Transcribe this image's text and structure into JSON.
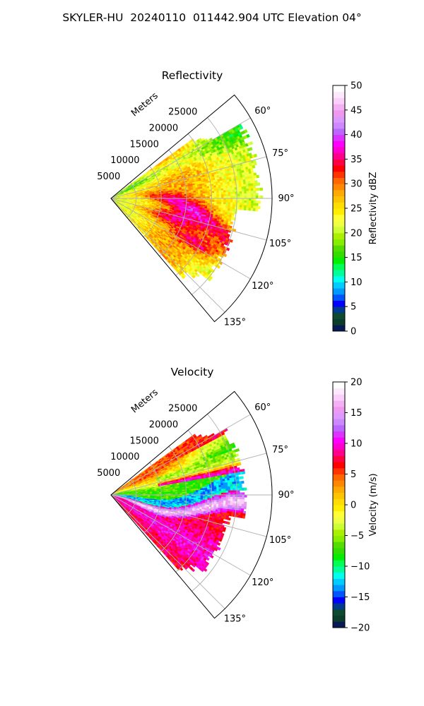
{
  "title": "SKYLER-HU  20240110  011442.904 UTC Elevation 04°",
  "chart_data": [
    {
      "type": "heatmap",
      "subtype": "polar-sector-ppi",
      "title": "Reflectivity",
      "range_label": "Meters",
      "range_ticks": [
        5000,
        10000,
        15000,
        20000,
        25000
      ],
      "range_tick_labels": [
        "5000",
        "10000",
        "15000",
        "20000",
        "25000"
      ],
      "rmax": 32000,
      "theta_min": 50,
      "theta_max": 140,
      "theta_ticks": [
        60,
        75,
        90,
        105,
        120,
        135
      ],
      "theta_tick_labels": [
        "60°",
        "75°",
        "90°",
        "105°",
        "120°",
        "135°"
      ],
      "grid": true,
      "colorbar": {
        "label": "Reflectivity dBZ",
        "min": 0,
        "max": 50,
        "ticks": [
          0,
          5,
          10,
          15,
          20,
          25,
          30,
          35,
          40,
          45,
          50
        ],
        "tick_labels": [
          "0",
          "5",
          "10",
          "15",
          "20",
          "25",
          "30",
          "35",
          "40",
          "45",
          "50"
        ],
        "colors": [
          "#071a55",
          "#0a3d2a",
          "#0d4a30",
          "#003a8c",
          "#0000ff",
          "#0055ff",
          "#0099ff",
          "#00ccff",
          "#00ffee",
          "#00ff99",
          "#00ff55",
          "#00ee00",
          "#33dd00",
          "#55dd00",
          "#88ee00",
          "#aaf000",
          "#ccff33",
          "#eeff44",
          "#ffff33",
          "#ffee00",
          "#ffdd00",
          "#ffc400",
          "#ffaa00",
          "#ff8800",
          "#ff6600",
          "#ff3300",
          "#ff0000",
          "#ff0044",
          "#ff0088",
          "#ff00cc",
          "#ff00ff",
          "#dd33ff",
          "#bb66ff",
          "#cc88ff",
          "#dd99ff",
          "#ee99ee",
          "#f5b0f5",
          "#fad0fa",
          "#fde8fd",
          "#ffffff"
        ]
      }
    },
    {
      "type": "heatmap",
      "subtype": "polar-sector-ppi",
      "title": "Velocity",
      "range_label": "Meters",
      "range_ticks": [
        5000,
        10000,
        15000,
        20000,
        25000
      ],
      "range_tick_labels": [
        "5000",
        "10000",
        "15000",
        "20000",
        "25000"
      ],
      "rmax": 32000,
      "theta_min": 50,
      "theta_max": 140,
      "theta_ticks": [
        60,
        75,
        90,
        105,
        120,
        135
      ],
      "theta_tick_labels": [
        "60°",
        "75°",
        "90°",
        "105°",
        "120°",
        "135°"
      ],
      "grid": true,
      "colorbar": {
        "label": "Velocity (m/s)",
        "min": -20,
        "max": 20,
        "ticks": [
          -20,
          -15,
          -10,
          -5,
          0,
          5,
          10,
          15,
          20
        ],
        "tick_labels": [
          "−20",
          "−15",
          "−10",
          "−5",
          "0",
          "5",
          "10",
          "15",
          "20"
        ],
        "colors": [
          "#071a55",
          "#0a3d2a",
          "#0d4a30",
          "#003a8c",
          "#0000ff",
          "#0055ff",
          "#0099ff",
          "#00ccff",
          "#00ffee",
          "#00ff99",
          "#00ff55",
          "#00ee00",
          "#33dd00",
          "#55dd00",
          "#88ee00",
          "#aaf000",
          "#ccff33",
          "#eeff44",
          "#ffff33",
          "#ffee00",
          "#ffdd00",
          "#ffc400",
          "#ffaa00",
          "#ff8800",
          "#ff6600",
          "#ff3300",
          "#ff0000",
          "#ff0044",
          "#ff0088",
          "#ff00cc",
          "#ff00ff",
          "#dd33ff",
          "#bb66ff",
          "#cc88ff",
          "#dd99ff",
          "#ee99ee",
          "#f5b0f5",
          "#fad0fa",
          "#fde8fd",
          "#ffffff"
        ]
      }
    }
  ]
}
